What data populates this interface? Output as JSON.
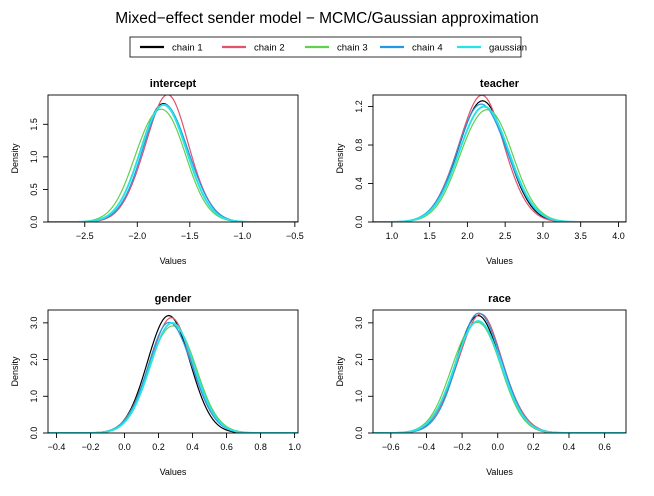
{
  "title": "Mixed−effect sender model − MCMC/Gaussian approximation",
  "legend": {
    "placement": "top-center",
    "entries": [
      {
        "label": "chain 1",
        "color": "#000000"
      },
      {
        "label": "chain 2",
        "color": "#df536b"
      },
      {
        "label": "chain 3",
        "color": "#61d04f"
      },
      {
        "label": "chain 4",
        "color": "#2297e6"
      },
      {
        "label": "gaussian",
        "color": "#28e2e5"
      }
    ]
  },
  "chart_data": [
    {
      "type": "line",
      "title": "intercept",
      "xlabel": "Values",
      "ylabel": "Density",
      "xlim": [
        -2.85,
        -0.47
      ],
      "ylim": [
        0,
        1.95
      ],
      "xticks": [
        -2.5,
        -2.0,
        -1.5,
        -1.0,
        -0.5
      ],
      "xtick_labels": [
        "−2.5",
        "−2.0",
        "−1.5",
        "−1.0",
        "−0.5"
      ],
      "yticks": [
        0,
        0.5,
        1.0,
        1.5
      ],
      "ytick_labels": [
        "0.0",
        "0.5",
        "1.0",
        "1.5"
      ],
      "x_range": [
        -2.85,
        -0.47
      ],
      "series": [
        {
          "name": "chain 1",
          "mean": -1.75,
          "sd": 0.22,
          "peak": 1.82
        },
        {
          "name": "chain 2",
          "mean": -1.72,
          "sd": 0.215,
          "peak": 1.9
        },
        {
          "name": "chain 3",
          "mean": -1.78,
          "sd": 0.225,
          "peak": 1.78
        },
        {
          "name": "chain 4",
          "mean": -1.73,
          "sd": 0.22,
          "peak": 1.8
        },
        {
          "name": "gaussian",
          "mean": -1.75,
          "sd": 0.22,
          "peak": 1.8
        }
      ]
    },
    {
      "type": "line",
      "title": "teacher",
      "xlabel": "Values",
      "ylabel": "Density",
      "xlim": [
        0.75,
        4.1
      ],
      "ylim": [
        0,
        1.32
      ],
      "xticks": [
        1.0,
        1.5,
        2.0,
        2.5,
        3.0,
        3.5,
        4.0
      ],
      "xtick_labels": [
        "1.0",
        "1.5",
        "2.0",
        "2.5",
        "3.0",
        "3.5",
        "4.0"
      ],
      "yticks": [
        0,
        0.4,
        0.8,
        1.2
      ],
      "ytick_labels": [
        "0.0",
        "0.4",
        "0.8",
        "1.2"
      ],
      "x_range": [
        0.75,
        4.1
      ],
      "series": [
        {
          "name": "chain 1",
          "mean": 2.2,
          "sd": 0.32,
          "peak": 1.26
        },
        {
          "name": "chain 2",
          "mean": 2.18,
          "sd": 0.315,
          "peak": 1.28
        },
        {
          "name": "chain 3",
          "mean": 2.25,
          "sd": 0.33,
          "peak": 1.2
        },
        {
          "name": "chain 4",
          "mean": 2.2,
          "sd": 0.33,
          "peak": 1.22
        },
        {
          "name": "gaussian",
          "mean": 2.22,
          "sd": 0.33,
          "peak": 1.2
        }
      ]
    },
    {
      "type": "line",
      "title": "gender",
      "xlabel": "Values",
      "ylabel": "Density",
      "xlim": [
        -0.45,
        1.02
      ],
      "ylim": [
        0,
        3.35
      ],
      "xticks": [
        -0.4,
        -0.2,
        0.0,
        0.2,
        0.4,
        0.6,
        0.8,
        1.0
      ],
      "xtick_labels": [
        "−0.4",
        "−0.2",
        "0.0",
        "0.2",
        "0.4",
        "0.6",
        "0.8",
        "1.0"
      ],
      "yticks": [
        0,
        1.0,
        2.0,
        3.0
      ],
      "ytick_labels": [
        "0.0",
        "1.0",
        "2.0",
        "3.0"
      ],
      "x_range": [
        -0.45,
        1.02
      ],
      "series": [
        {
          "name": "chain 1",
          "mean": 0.26,
          "sd": 0.125,
          "peak": 3.2
        },
        {
          "name": "chain 2",
          "mean": 0.27,
          "sd": 0.13,
          "peak": 3.05
        },
        {
          "name": "chain 3",
          "mean": 0.28,
          "sd": 0.135,
          "peak": 3.0
        },
        {
          "name": "chain 4",
          "mean": 0.27,
          "sd": 0.13,
          "peak": 3.0
        },
        {
          "name": "gaussian",
          "mean": 0.28,
          "sd": 0.13,
          "peak": 3.0
        }
      ]
    },
    {
      "type": "line",
      "title": "race",
      "xlabel": "Values",
      "ylabel": "Density",
      "xlim": [
        -0.7,
        0.72
      ],
      "ylim": [
        0,
        3.35
      ],
      "xticks": [
        -0.6,
        -0.4,
        -0.2,
        0.0,
        0.2,
        0.4,
        0.6
      ],
      "xtick_labels": [
        "−0.6",
        "−0.4",
        "−0.2",
        "0.0",
        "0.2",
        "0.4",
        "0.6"
      ],
      "yticks": [
        0,
        1.0,
        2.0,
        3.0
      ],
      "ytick_labels": [
        "0.0",
        "1.0",
        "2.0",
        "3.0"
      ],
      "x_range": [
        -0.7,
        0.72
      ],
      "series": [
        {
          "name": "chain 1",
          "mean": -0.11,
          "sd": 0.125,
          "peak": 3.2
        },
        {
          "name": "chain 2",
          "mean": -0.1,
          "sd": 0.13,
          "peak": 3.15
        },
        {
          "name": "chain 3",
          "mean": -0.12,
          "sd": 0.13,
          "peak": 3.1
        },
        {
          "name": "chain 4",
          "mean": -0.1,
          "sd": 0.125,
          "peak": 3.25
        },
        {
          "name": "gaussian",
          "mean": -0.11,
          "sd": 0.13,
          "peak": 3.05
        }
      ]
    }
  ]
}
